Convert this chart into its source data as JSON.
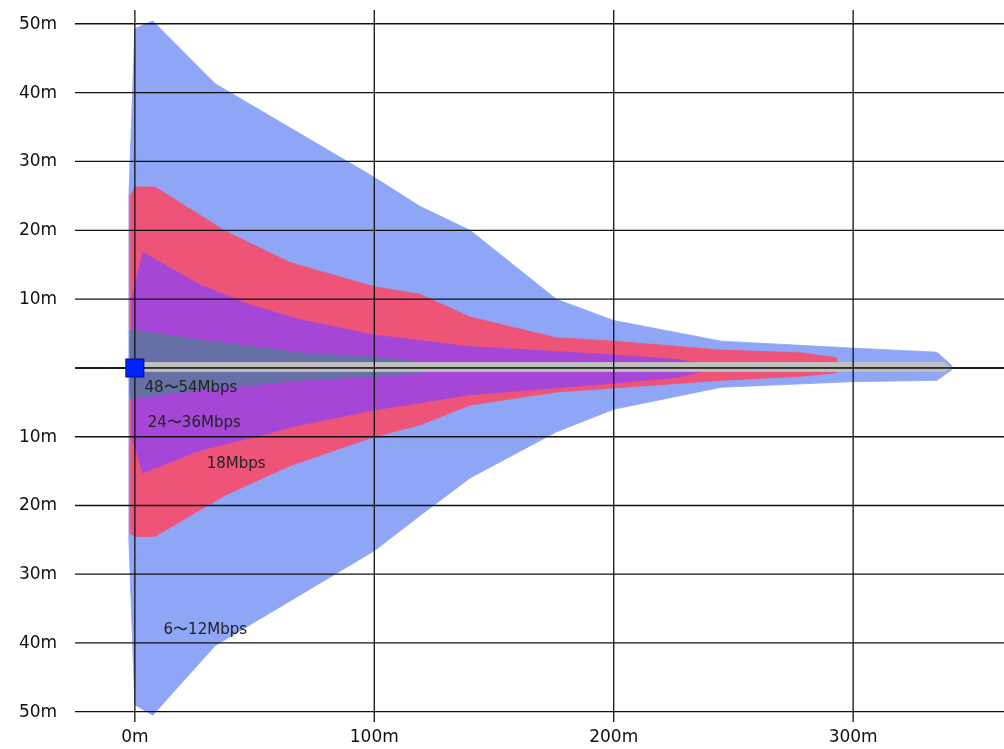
{
  "chart_data": [
    {
      "type": "area",
      "xlim": [
        -25,
        363
      ],
      "ylim": [
        0,
        52
      ],
      "tick_labels": "y",
      "grid": true,
      "xticks": [
        0,
        100,
        200,
        300
      ],
      "yticks": [
        {
          "value": 0,
          "label": null
        },
        {
          "value": 10,
          "label": "10m"
        },
        {
          "value": 20,
          "label": "20m"
        },
        {
          "value": 30,
          "label": "30m"
        },
        {
          "value": 40,
          "label": "40m"
        },
        {
          "value": 50,
          "label": "50m"
        }
      ],
      "series": [
        {
          "color": "#8ea6f5",
          "x": [
            -2.5,
            0,
            7.5,
            33.5,
            100,
            119,
            140,
            176,
            200,
            245,
            299,
            335,
            341
          ],
          "values": [
            25,
            49.3,
            50.4,
            41.3,
            27.7,
            23.5,
            20,
            10,
            6.9,
            3.9,
            2.9,
            2.3,
            0.4
          ]
        },
        {
          "color": "#ee5478",
          "x": [
            -2,
            0,
            8.4,
            37.7,
            65,
            100,
            119,
            140,
            176,
            200,
            245,
            278,
            293,
            293.3
          ],
          "values": [
            25,
            26.3,
            26.3,
            19.9,
            15.3,
            11.8,
            10.7,
            7.4,
            4.4,
            3.9,
            2.6,
            2.2,
            1.5,
            0
          ]
        },
        {
          "color": "#a646d6",
          "x": [
            -1.3,
            3.3,
            27,
            48,
            69,
            100,
            140,
            200,
            228,
            236
          ],
          "values": [
            10,
            16.8,
            12.1,
            9.2,
            7,
            4.8,
            3.1,
            1.9,
            1.2,
            0.5
          ]
        },
        {
          "color": "#6670a6",
          "x": [
            -2,
            0,
            27,
            69,
            100,
            119,
            128
          ],
          "values": [
            5.5,
            5.5,
            4.1,
            2.2,
            1.6,
            0.9,
            0
          ]
        },
        {
          "color": "#c0c0c0",
          "x": [
            4,
            338,
            341
          ],
          "values": [
            0.8,
            0.8,
            0
          ]
        }
      ]
    },
    {
      "type": "area",
      "xlim": [
        -25,
        363
      ],
      "ylim": [
        51.5,
        0
      ],
      "grid": true,
      "xticks": [
        {
          "value": 0,
          "label": "0m"
        },
        {
          "value": 100,
          "label": "100m"
        },
        {
          "value": 200,
          "label": "200m"
        },
        {
          "value": 300,
          "label": "300m"
        }
      ],
      "yticks": [
        {
          "value": 0,
          "label": null
        },
        {
          "value": 10,
          "label": "10m"
        },
        {
          "value": 20,
          "label": "20m"
        },
        {
          "value": 30,
          "label": "30m"
        },
        {
          "value": 40,
          "label": "40m"
        },
        {
          "value": 50,
          "label": "50m"
        }
      ],
      "series": [
        {
          "name": "6〜12Mbps",
          "color": "#8ea6f5",
          "x": [
            -2.5,
            0,
            7.5,
            33.5,
            100,
            119,
            140,
            176,
            200,
            245,
            299,
            335,
            341
          ],
          "values": [
            25,
            49,
            50.5,
            40.4,
            26.6,
            21.5,
            16,
            9.3,
            6,
            2.8,
            2,
            1.8,
            0.3
          ]
        },
        {
          "name": "18Mbps",
          "color": "#ee5478",
          "x": [
            -2,
            0,
            8.4,
            37.7,
            65,
            100,
            119,
            140,
            176,
            200,
            245,
            278,
            293,
            293.3
          ],
          "values": [
            24,
            24.5,
            24.5,
            18.5,
            14.2,
            10,
            8.3,
            5.4,
            3.5,
            2.9,
            1.8,
            1.2,
            0.7,
            0
          ]
        },
        {
          "name": "24〜36Mbps",
          "color": "#a646d6",
          "x": [
            -1.3,
            3.3,
            27,
            48,
            69,
            100,
            140,
            200,
            228,
            236
          ],
          "values": [
            10,
            15.3,
            12,
            10.2,
            8.3,
            6.1,
            3.9,
            2.2,
            1.3,
            0.5
          ]
        },
        {
          "name": "48〜54Mbps",
          "color": "#6670a6",
          "x": [
            -2,
            0,
            27,
            69,
            100,
            119,
            128
          ],
          "values": [
            4.4,
            4.4,
            3.2,
            1.8,
            1.2,
            0.7,
            0
          ]
        },
        {
          "color": "#c0c0c0",
          "x": [
            4,
            338,
            341
          ],
          "values": [
            0.5,
            0.5,
            0
          ]
        }
      ]
    }
  ]
}
